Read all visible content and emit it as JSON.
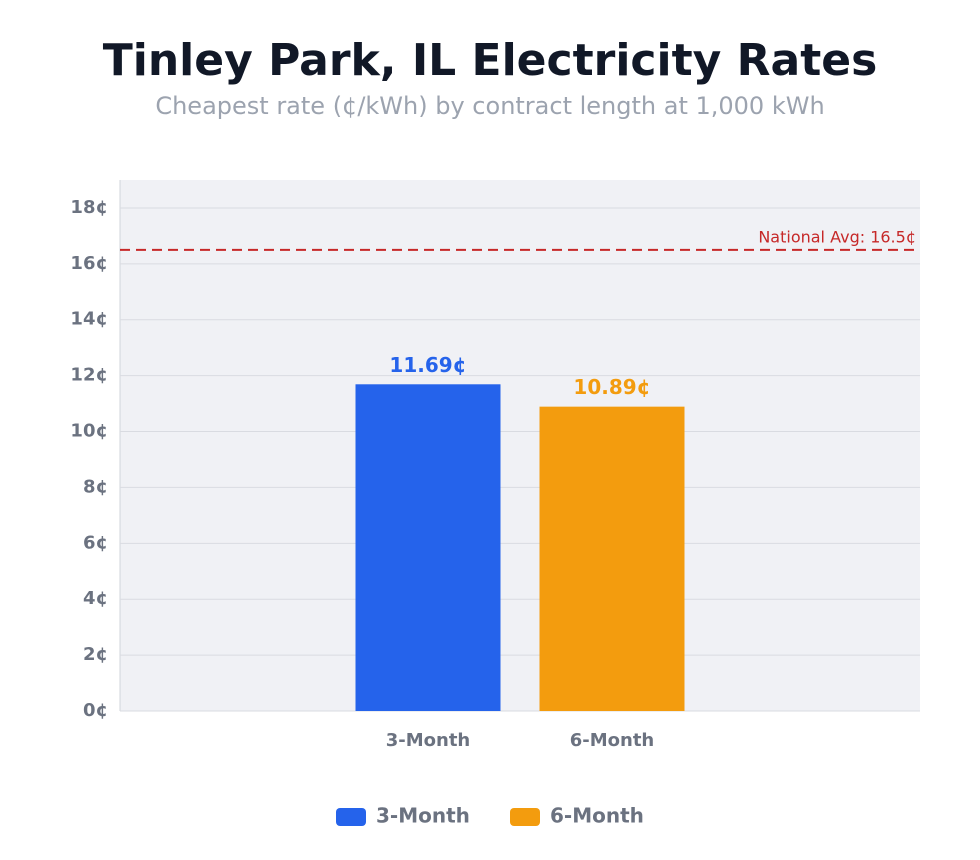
{
  "chart_data": {
    "type": "bar",
    "title": "Tinley Park, IL Electricity Rates",
    "subtitle": "Cheapest rate (¢/kWh) by contract length at 1,000 kWh",
    "categories": [
      "3-Month",
      "6-Month"
    ],
    "values": [
      11.69,
      10.89
    ],
    "value_labels": [
      "11.69¢",
      "10.89¢"
    ],
    "colors": [
      "#2563eb",
      "#f39c0e"
    ],
    "ylim": [
      0,
      19
    ],
    "yticks": [
      {
        "value": 0,
        "label": "0¢"
      },
      {
        "value": 2,
        "label": "2¢"
      },
      {
        "value": 4,
        "label": "4¢"
      },
      {
        "value": 6,
        "label": "6¢"
      },
      {
        "value": 8,
        "label": "8¢"
      },
      {
        "value": 10,
        "label": "10¢"
      },
      {
        "value": 12,
        "label": "12¢"
      },
      {
        "value": 14,
        "label": "14¢"
      },
      {
        "value": 16,
        "label": "16¢"
      },
      {
        "value": 18,
        "label": "18¢"
      }
    ],
    "grid": true,
    "reference_line": {
      "value": 16.5,
      "label": "National Avg: 16.5¢",
      "color": "#c62828"
    },
    "legend": "bottom"
  }
}
